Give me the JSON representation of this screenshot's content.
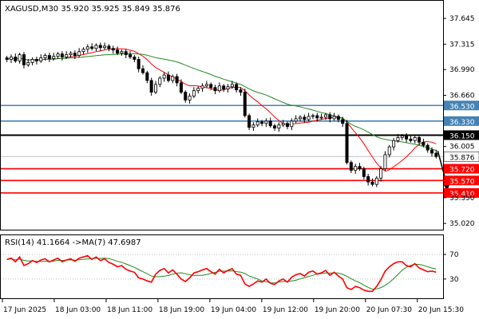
{
  "chart_data": [
    {
      "type": "candlestick",
      "title": "XAGUSD,M30",
      "ohlc_readout": "35.920 35.925 35.849 35.876",
      "y_ticks": [
        "37.645",
        "37.315",
        "36.990",
        "36.660",
        "36.005",
        "35.350",
        "35.020"
      ],
      "ylim": [
        34.95,
        37.86
      ],
      "x_ticks": [
        "17 Jun 2025",
        "18 Jun 03:00",
        "18 Jun 11:00",
        "18 Jun 19:00",
        "19 Jun 04:00",
        "19 Jun 12:00",
        "19 Jun 20:00",
        "20 Jun 07:30",
        "20 Jun 15:30"
      ],
      "current_price": {
        "value": 35.876,
        "label": "35.876",
        "line_color": "#c0c0c0"
      },
      "levels": [
        {
          "value": 36.53,
          "label": "36.530",
          "color": "#4682b4",
          "style": "resistance"
        },
        {
          "value": 36.33,
          "label": "36.330",
          "color": "#4682b4",
          "style": "resistance"
        },
        {
          "value": 36.15,
          "label": "36.150",
          "color": "#000000",
          "style": "pivot"
        },
        {
          "value": 35.72,
          "label": "35.720",
          "color": "#ff0000",
          "style": "support"
        },
        {
          "value": 35.57,
          "label": "35.570",
          "color": "#ff0000",
          "style": "support"
        },
        {
          "value": 35.41,
          "label": "35.410",
          "color": "#ff0000",
          "style": "support"
        }
      ],
      "moving_averages": [
        {
          "color": "#ff0000"
        },
        {
          "color": "#228b22"
        }
      ],
      "arrow": {
        "from": 35.95,
        "to": 35.41,
        "direction": "down",
        "color": "#000000"
      },
      "candle_color_up": "#000000",
      "candle_color_down": "#000000",
      "closes": [
        37.12,
        37.15,
        37.1,
        37.18,
        37.05,
        37.08,
        37.12,
        37.1,
        37.14,
        37.17,
        37.13,
        37.16,
        37.19,
        37.15,
        37.18,
        37.2,
        37.17,
        37.22,
        37.25,
        37.28,
        37.26,
        37.3,
        37.27,
        37.29,
        37.26,
        37.24,
        37.2,
        37.22,
        37.18,
        37.15,
        37.12,
        37.0,
        36.95,
        36.85,
        36.7,
        36.8,
        36.88,
        36.92,
        36.85,
        36.9,
        36.82,
        36.7,
        36.6,
        36.65,
        36.72,
        36.75,
        36.78,
        36.8,
        36.76,
        36.72,
        36.78,
        36.74,
        36.77,
        36.8,
        36.73,
        36.7,
        36.4,
        36.25,
        36.28,
        36.32,
        36.3,
        36.33,
        36.27,
        36.24,
        36.28,
        36.3,
        36.26,
        36.33,
        36.36,
        36.38,
        36.35,
        36.39,
        36.4,
        36.37,
        36.38,
        36.41,
        36.36,
        36.39,
        36.35,
        36.3,
        35.8,
        35.7,
        35.75,
        35.72,
        35.62,
        35.55,
        35.52,
        35.6,
        35.72,
        35.9,
        36.0,
        36.08,
        36.12,
        36.14,
        36.1,
        36.08,
        36.12,
        36.06,
        36.02,
        35.96,
        35.92,
        35.876
      ]
    },
    {
      "type": "line",
      "title": "RSI(14) 41.1664 ->MA(7) 47.6987",
      "y_ticks": [
        "70",
        "30"
      ],
      "ylim": [
        0,
        100
      ],
      "levels": [
        {
          "value": 70,
          "color": "#c0c0c0",
          "style": "dotted"
        },
        {
          "value": 30,
          "color": "#c0c0c0",
          "style": "dotted"
        }
      ],
      "series": [
        {
          "name": "RSI(14)",
          "color": "#ff0000",
          "values": [
            62,
            64,
            58,
            66,
            52,
            55,
            60,
            57,
            61,
            63,
            58,
            61,
            64,
            58,
            61,
            63,
            59,
            64,
            66,
            68,
            62,
            66,
            60,
            63,
            57,
            54,
            50,
            52,
            46,
            43,
            41,
            32,
            30,
            27,
            25,
            38,
            44,
            47,
            40,
            45,
            38,
            30,
            26,
            32,
            40,
            42,
            45,
            47,
            42,
            38,
            46,
            40,
            44,
            47,
            38,
            36,
            22,
            18,
            22,
            27,
            25,
            30,
            23,
            21,
            27,
            30,
            25,
            33,
            37,
            39,
            35,
            41,
            43,
            38,
            40,
            44,
            36,
            41,
            35,
            30,
            16,
            13,
            18,
            16,
            12,
            10,
            10,
            18,
            29,
            43,
            50,
            55,
            58,
            58,
            52,
            50,
            55,
            48,
            45,
            42,
            43,
            41.1664
          ]
        },
        {
          "name": "MA(7)",
          "color": "#228b22",
          "values": []
        }
      ]
    }
  ]
}
